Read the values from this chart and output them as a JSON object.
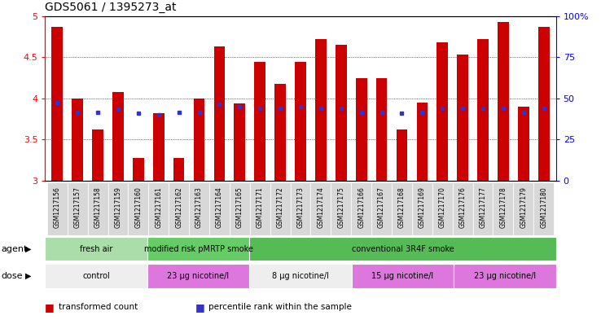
{
  "title": "GDS5061 / 1395273_at",
  "samples": [
    "GSM1217156",
    "GSM1217157",
    "GSM1217158",
    "GSM1217159",
    "GSM1217160",
    "GSM1217161",
    "GSM1217162",
    "GSM1217163",
    "GSM1217164",
    "GSM1217165",
    "GSM1217171",
    "GSM1217172",
    "GSM1217173",
    "GSM1217174",
    "GSM1217175",
    "GSM1217166",
    "GSM1217167",
    "GSM1217168",
    "GSM1217169",
    "GSM1217170",
    "GSM1217176",
    "GSM1217177",
    "GSM1217178",
    "GSM1217179",
    "GSM1217180"
  ],
  "bar_values": [
    4.87,
    4.0,
    3.62,
    4.08,
    3.28,
    3.82,
    3.28,
    4.0,
    4.63,
    3.94,
    4.44,
    4.18,
    4.44,
    4.72,
    4.65,
    4.25,
    4.25,
    3.62,
    3.95,
    4.68,
    4.53,
    4.72,
    4.93,
    3.9,
    4.87
  ],
  "percentile_values": [
    3.95,
    3.83,
    3.83,
    3.87,
    3.82,
    3.8,
    3.83,
    3.83,
    3.93,
    3.9,
    3.88,
    3.88,
    3.9,
    3.88,
    3.88,
    3.83,
    3.83,
    3.82,
    3.83,
    3.88,
    3.88,
    3.88,
    3.88,
    3.83,
    3.88
  ],
  "ylim": [
    3.0,
    5.0
  ],
  "yticks": [
    3.0,
    3.5,
    4.0,
    4.5,
    5.0
  ],
  "ytick_labels": [
    "3",
    "3.5",
    "4",
    "4.5",
    "5"
  ],
  "y2ticks": [
    0,
    25,
    50,
    75,
    100
  ],
  "y2tick_labels": [
    "0",
    "25",
    "50",
    "75",
    "100%"
  ],
  "bar_color": "#cc0000",
  "dot_color": "#3333cc",
  "agent_groups": [
    {
      "label": "fresh air",
      "start": 0,
      "end": 5,
      "color": "#aaddaa"
    },
    {
      "label": "modified risk pMRTP smoke",
      "start": 5,
      "end": 10,
      "color": "#66cc66"
    },
    {
      "label": "conventional 3R4F smoke",
      "start": 10,
      "end": 25,
      "color": "#55bb55"
    }
  ],
  "dose_groups": [
    {
      "label": "control",
      "start": 0,
      "end": 5,
      "color": "#eeeeee"
    },
    {
      "label": "23 μg nicotine/l",
      "start": 5,
      "end": 10,
      "color": "#dd77dd"
    },
    {
      "label": "8 μg nicotine/l",
      "start": 10,
      "end": 15,
      "color": "#eeeeee"
    },
    {
      "label": "15 μg nicotine/l",
      "start": 15,
      "end": 20,
      "color": "#dd77dd"
    },
    {
      "label": "23 μg nicotine/l",
      "start": 20,
      "end": 25,
      "color": "#dd77dd"
    }
  ],
  "legend_items": [
    {
      "label": "transformed count",
      "color": "#cc0000"
    },
    {
      "label": "percentile rank within the sample",
      "color": "#3333cc"
    }
  ],
  "background_color": "white",
  "title_fontsize": 10,
  "bar_width": 0.55,
  "xlabel_bg": "#dddddd"
}
